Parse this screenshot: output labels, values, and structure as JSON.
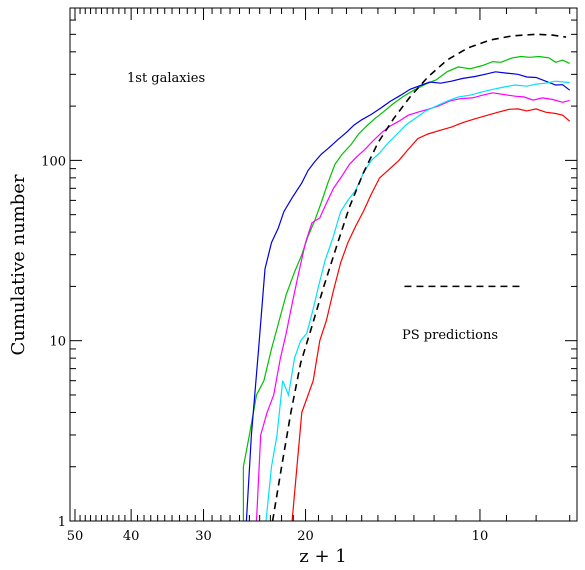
{
  "chart_data": {
    "type": "line",
    "xlabel": "z + 1",
    "ylabel": "Cumulative number",
    "xscale": "log-reversed",
    "yscale": "log",
    "xlim": [
      51,
      6.8
    ],
    "ylim": [
      1,
      700
    ],
    "x_ticks": [
      {
        "value": 50,
        "label": "50"
      },
      {
        "value": 40,
        "label": "40"
      },
      {
        "value": 30,
        "label": "30"
      },
      {
        "value": 20,
        "label": "20"
      },
      {
        "value": 10,
        "label": "10"
      }
    ],
    "y_ticks": [
      {
        "value": 1,
        "label": "1"
      },
      {
        "value": 10,
        "label": "10"
      },
      {
        "value": 100,
        "label": "100"
      }
    ],
    "annotations": {
      "first_galaxies": "1st galaxies",
      "ps_predictions": "PS predictions"
    },
    "series": [
      {
        "color": "#00c000",
        "style": "solid",
        "points": [
          [
            25.6,
            1
          ],
          [
            25.6,
            2
          ],
          [
            25.0,
            3
          ],
          [
            24.3,
            5
          ],
          [
            23.6,
            6
          ],
          [
            22.9,
            9
          ],
          [
            22.2,
            13
          ],
          [
            21.6,
            18
          ],
          [
            20.9,
            24
          ],
          [
            20.3,
            30
          ],
          [
            19.8,
            38
          ],
          [
            19.3,
            46
          ],
          [
            18.8,
            58
          ],
          [
            18.3,
            75
          ],
          [
            17.8,
            95
          ],
          [
            17.3,
            108
          ],
          [
            16.7,
            122
          ],
          [
            16.2,
            140
          ],
          [
            15.7,
            155
          ],
          [
            15.2,
            170
          ],
          [
            14.7,
            185
          ],
          [
            14.2,
            203
          ],
          [
            13.6,
            225
          ],
          [
            13.0,
            245
          ],
          [
            12.4,
            265
          ],
          [
            11.9,
            280
          ],
          [
            11.4,
            310
          ],
          [
            10.9,
            330
          ],
          [
            10.4,
            322
          ],
          [
            9.9,
            336
          ],
          [
            9.5,
            353
          ],
          [
            9.2,
            350
          ],
          [
            8.8,
            370
          ],
          [
            8.5,
            377
          ],
          [
            8.2,
            373
          ],
          [
            7.9,
            377
          ],
          [
            7.6,
            370
          ],
          [
            7.4,
            350
          ],
          [
            7.2,
            360
          ],
          [
            7.0,
            345
          ]
        ]
      },
      {
        "color": "#0000e0",
        "style": "solid",
        "points": [
          [
            25.3,
            1
          ],
          [
            24.8,
            3
          ],
          [
            24.1,
            9
          ],
          [
            23.5,
            25
          ],
          [
            22.9,
            35
          ],
          [
            22.3,
            42
          ],
          [
            21.8,
            52
          ],
          [
            21.1,
            62
          ],
          [
            20.3,
            75
          ],
          [
            19.8,
            88
          ],
          [
            19.3,
            98
          ],
          [
            18.8,
            108
          ],
          [
            18.2,
            118
          ],
          [
            17.6,
            130
          ],
          [
            17.0,
            143
          ],
          [
            16.5,
            157
          ],
          [
            16.0,
            168
          ],
          [
            15.4,
            180
          ],
          [
            14.8,
            196
          ],
          [
            14.3,
            212
          ],
          [
            13.7,
            230
          ],
          [
            13.2,
            248
          ],
          [
            12.6,
            262
          ],
          [
            12.2,
            272
          ],
          [
            11.7,
            268
          ],
          [
            11.2,
            275
          ],
          [
            10.7,
            285
          ],
          [
            10.2,
            292
          ],
          [
            9.8,
            300
          ],
          [
            9.4,
            310
          ],
          [
            9.0,
            305
          ],
          [
            8.6,
            300
          ],
          [
            8.3,
            290
          ],
          [
            8.0,
            288
          ],
          [
            7.7,
            275
          ],
          [
            7.4,
            262
          ],
          [
            7.2,
            263
          ],
          [
            7.0,
            245
          ]
        ]
      },
      {
        "color": "#ff00ff",
        "style": "solid",
        "points": [
          [
            24.3,
            1
          ],
          [
            23.9,
            3
          ],
          [
            23.3,
            4
          ],
          [
            22.7,
            5
          ],
          [
            22.1,
            8
          ],
          [
            21.6,
            11
          ],
          [
            21.1,
            16
          ],
          [
            20.6,
            23
          ],
          [
            20.0,
            35
          ],
          [
            19.5,
            45
          ],
          [
            18.9,
            48
          ],
          [
            18.4,
            58
          ],
          [
            17.9,
            70
          ],
          [
            17.3,
            82
          ],
          [
            16.8,
            95
          ],
          [
            16.3,
            105
          ],
          [
            15.8,
            115
          ],
          [
            15.3,
            128
          ],
          [
            14.8,
            142
          ],
          [
            14.3,
            155
          ],
          [
            13.8,
            165
          ],
          [
            13.3,
            178
          ],
          [
            12.8,
            185
          ],
          [
            12.3,
            192
          ],
          [
            11.8,
            200
          ],
          [
            11.3,
            213
          ],
          [
            10.8,
            220
          ],
          [
            10.3,
            222
          ],
          [
            9.9,
            230
          ],
          [
            9.5,
            237
          ],
          [
            9.1,
            232
          ],
          [
            8.7,
            227
          ],
          [
            8.4,
            225
          ],
          [
            8.1,
            216
          ],
          [
            7.8,
            222
          ],
          [
            7.5,
            218
          ],
          [
            7.2,
            210
          ],
          [
            7.0,
            215
          ]
        ]
      },
      {
        "color": "#00e0ff",
        "style": "solid",
        "points": [
          [
            23.4,
            1
          ],
          [
            22.9,
            2
          ],
          [
            22.4,
            3
          ],
          [
            21.9,
            6
          ],
          [
            21.4,
            5
          ],
          [
            20.9,
            8
          ],
          [
            20.4,
            10
          ],
          [
            19.9,
            11
          ],
          [
            19.4,
            15
          ],
          [
            19.0,
            20
          ],
          [
            18.5,
            28
          ],
          [
            17.9,
            38
          ],
          [
            17.4,
            52
          ],
          [
            16.9,
            60
          ],
          [
            16.4,
            68
          ],
          [
            15.9,
            85
          ],
          [
            15.4,
            100
          ],
          [
            14.9,
            110
          ],
          [
            14.4,
            125
          ],
          [
            13.9,
            140
          ],
          [
            13.4,
            158
          ],
          [
            12.9,
            172
          ],
          [
            12.4,
            188
          ],
          [
            11.9,
            200
          ],
          [
            11.4,
            213
          ],
          [
            10.9,
            225
          ],
          [
            10.4,
            230
          ],
          [
            9.9,
            240
          ],
          [
            9.5,
            248
          ],
          [
            9.1,
            255
          ],
          [
            8.7,
            262
          ],
          [
            8.3,
            258
          ],
          [
            8.0,
            265
          ],
          [
            7.7,
            268
          ],
          [
            7.4,
            275
          ],
          [
            7.0,
            270
          ]
        ]
      },
      {
        "color": "#ff0000",
        "style": "solid",
        "points": [
          [
            21.1,
            1
          ],
          [
            20.3,
            4
          ],
          [
            19.8,
            5
          ],
          [
            19.4,
            6
          ],
          [
            18.9,
            10
          ],
          [
            18.4,
            13
          ],
          [
            17.9,
            19
          ],
          [
            17.4,
            27
          ],
          [
            16.9,
            35
          ],
          [
            16.4,
            43
          ],
          [
            15.9,
            52
          ],
          [
            15.4,
            65
          ],
          [
            14.9,
            80
          ],
          [
            14.3,
            90
          ],
          [
            13.8,
            100
          ],
          [
            13.3,
            115
          ],
          [
            12.8,
            132
          ],
          [
            12.3,
            140
          ],
          [
            11.7,
            147
          ],
          [
            11.2,
            153
          ],
          [
            10.7,
            162
          ],
          [
            10.2,
            170
          ],
          [
            9.7,
            178
          ],
          [
            9.3,
            185
          ],
          [
            8.9,
            192
          ],
          [
            8.6,
            193
          ],
          [
            8.3,
            188
          ],
          [
            8.0,
            193
          ],
          [
            7.7,
            185
          ],
          [
            7.4,
            182
          ],
          [
            7.2,
            178
          ],
          [
            7.0,
            165
          ]
        ]
      },
      {
        "color": "#000000",
        "style": "dashed",
        "points": [
          [
            22.8,
            1
          ],
          [
            22.0,
            2
          ],
          [
            21.2,
            4
          ],
          [
            20.4,
            7.5
          ],
          [
            19.5,
            12
          ],
          [
            18.6,
            20
          ],
          [
            17.7,
            33
          ],
          [
            16.8,
            55
          ],
          [
            15.9,
            85
          ],
          [
            15.0,
            125
          ],
          [
            14.1,
            170
          ],
          [
            13.2,
            225
          ],
          [
            12.3,
            290
          ],
          [
            11.4,
            360
          ],
          [
            10.5,
            420
          ],
          [
            9.6,
            465
          ],
          [
            8.8,
            490
          ],
          [
            8.0,
            500
          ],
          [
            7.5,
            495
          ],
          [
            7.1,
            483
          ]
        ]
      }
    ],
    "legend_sample": {
      "color": "#000000",
      "style": "dashed",
      "x_from": 13.5,
      "x_to": 8.5,
      "y": 20
    }
  }
}
